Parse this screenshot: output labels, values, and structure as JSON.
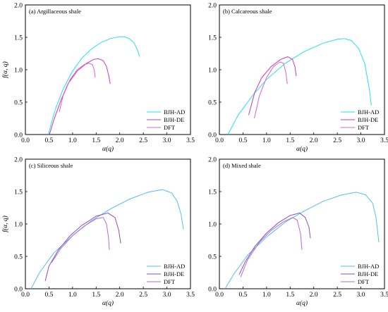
{
  "chart_data": [
    {
      "type": "line",
      "title": "(a)  Argillaceous shale",
      "xlabel": "α(q)",
      "ylabel": "f(α, q)",
      "xlim": [
        0,
        3.5
      ],
      "ylim": [
        0,
        2.0
      ],
      "xticks": [
        "0.0",
        "0.5",
        "1.0",
        "1.5",
        "2.0",
        "2.5",
        "3.0",
        "3.5"
      ],
      "yticks": [
        "0.0",
        "0.5",
        "1.0",
        "1.5",
        "2.0"
      ],
      "legend_position": "bottom-right",
      "series": [
        {
          "name": "BJH-AD",
          "color": "#22e0f2",
          "x": [
            0.49,
            0.55,
            0.65,
            0.8,
            1.0,
            1.2,
            1.4,
            1.6,
            1.8,
            2.0,
            2.1,
            2.2,
            2.3,
            2.38,
            2.42
          ],
          "y": [
            0.0,
            0.18,
            0.42,
            0.7,
            0.98,
            1.18,
            1.32,
            1.42,
            1.48,
            1.51,
            1.51,
            1.48,
            1.42,
            1.3,
            1.2
          ]
        },
        {
          "name": "BJH-DE",
          "color": "#c23bc4",
          "x": [
            0.51,
            0.6,
            0.75,
            0.9,
            1.1,
            1.3,
            1.45,
            1.55,
            1.65,
            1.72,
            1.77,
            1.8
          ],
          "y": [
            0.0,
            0.22,
            0.52,
            0.78,
            0.98,
            1.1,
            1.16,
            1.17,
            1.14,
            1.05,
            0.9,
            0.78
          ]
        },
        {
          "name": "DFT",
          "color": "#d960d9",
          "x": [
            0.72,
            0.8,
            0.95,
            1.1,
            1.25,
            1.35,
            1.42,
            1.46,
            1.48
          ],
          "y": [
            0.35,
            0.6,
            0.85,
            1.0,
            1.08,
            1.1,
            1.08,
            1.0,
            0.88
          ]
        }
      ]
    },
    {
      "type": "line",
      "title": "(b)  Calcareous shale",
      "xlabel": "α(q)",
      "ylabel": "",
      "xlim": [
        0,
        3.5
      ],
      "ylim": [
        0,
        2.0
      ],
      "xticks": [
        "0.0",
        "0.5",
        "1.0",
        "1.5",
        "2.0",
        "2.5",
        "3.0",
        "3.5"
      ],
      "yticks": [
        "0.0",
        "0.5",
        "1.0",
        "1.5",
        "2.0"
      ],
      "legend_position": "bottom-right",
      "series": [
        {
          "name": "BJH-AD",
          "color": "#22e0f2",
          "x": [
            0.18,
            0.4,
            0.7,
            1.0,
            1.4,
            1.8,
            2.2,
            2.5,
            2.65,
            2.8,
            2.95,
            3.08,
            3.18,
            3.22
          ],
          "y": [
            0.0,
            0.3,
            0.6,
            0.85,
            1.1,
            1.28,
            1.41,
            1.47,
            1.48,
            1.45,
            1.33,
            1.1,
            0.7,
            0.45
          ]
        },
        {
          "name": "BJH-DE",
          "color": "#c23bc4",
          "x": [
            0.62,
            0.75,
            0.9,
            1.1,
            1.3,
            1.45,
            1.55,
            1.6,
            1.63
          ],
          "y": [
            0.3,
            0.65,
            0.88,
            1.05,
            1.16,
            1.2,
            1.16,
            1.05,
            0.9
          ]
        },
        {
          "name": "DFT",
          "color": "#d960d9",
          "x": [
            0.74,
            0.85,
            1.0,
            1.15,
            1.28,
            1.36,
            1.41,
            1.44
          ],
          "y": [
            0.25,
            0.6,
            0.88,
            1.05,
            1.12,
            1.1,
            0.95,
            0.78
          ]
        }
      ]
    },
    {
      "type": "line",
      "title": "(c)  Siliceous shale",
      "xlabel": "α(q)",
      "ylabel": "f(α, q)",
      "xlim": [
        0,
        3.5
      ],
      "ylim": [
        0,
        2.0
      ],
      "xticks": [
        "0.0",
        "0.5",
        "1.0",
        "1.5",
        "2.0",
        "2.5",
        "3.0",
        "3.5"
      ],
      "yticks": [
        "0.0",
        "0.5",
        "1.0",
        "1.5",
        "2.0"
      ],
      "legend_position": "bottom-right",
      "series": [
        {
          "name": "BJH-AD",
          "color": "#55bdee",
          "x": [
            0.12,
            0.3,
            0.6,
            1.0,
            1.4,
            1.8,
            2.2,
            2.6,
            2.9,
            3.1,
            3.22,
            3.3,
            3.35
          ],
          "y": [
            0.0,
            0.25,
            0.55,
            0.82,
            1.05,
            1.23,
            1.38,
            1.49,
            1.53,
            1.48,
            1.35,
            1.15,
            0.92
          ]
        },
        {
          "name": "BJH-DE",
          "color": "#8a4fc4",
          "x": [
            0.42,
            0.5,
            0.7,
            0.95,
            1.2,
            1.5,
            1.75,
            1.9,
            1.98,
            2.02
          ],
          "y": [
            0.12,
            0.35,
            0.6,
            0.82,
            0.98,
            1.12,
            1.17,
            1.1,
            0.9,
            0.7
          ]
        },
        {
          "name": "DFT",
          "color": "#b36ad6",
          "x": [
            0.55,
            0.75,
            1.0,
            1.25,
            1.5,
            1.65,
            1.72,
            1.76,
            1.78
          ],
          "y": [
            0.4,
            0.62,
            0.82,
            0.97,
            1.08,
            1.1,
            1.0,
            0.8,
            0.6
          ]
        }
      ]
    },
    {
      "type": "line",
      "title": "(d)  Mixed shale",
      "xlabel": "α(q)",
      "ylabel": "",
      "xlim": [
        0,
        3.5
      ],
      "ylim": [
        0,
        2.0
      ],
      "xticks": [
        "0.0",
        "0.5",
        "1.0",
        "1.5",
        "2.0",
        "2.5",
        "3.0",
        "3.5"
      ],
      "yticks": [
        "0.0",
        "0.5",
        "1.0",
        "1.5",
        "2.0"
      ],
      "legend_position": "bottom-right",
      "series": [
        {
          "name": "BJH-AD",
          "color": "#55bdee",
          "x": [
            0.12,
            0.3,
            0.6,
            1.0,
            1.4,
            1.8,
            2.2,
            2.6,
            2.9,
            3.1,
            3.25,
            3.32,
            3.38
          ],
          "y": [
            0.0,
            0.22,
            0.52,
            0.8,
            1.03,
            1.2,
            1.35,
            1.45,
            1.49,
            1.45,
            1.32,
            1.1,
            0.72
          ]
        },
        {
          "name": "BJH-DE",
          "color": "#8a4fc4",
          "x": [
            0.42,
            0.55,
            0.75,
            1.0,
            1.25,
            1.5,
            1.7,
            1.82,
            1.9,
            1.93
          ],
          "y": [
            0.22,
            0.42,
            0.65,
            0.86,
            1.02,
            1.13,
            1.17,
            1.1,
            0.95,
            0.78
          ]
        },
        {
          "name": "DFT",
          "color": "#b36ad6",
          "x": [
            0.45,
            0.6,
            0.85,
            1.1,
            1.35,
            1.55,
            1.65,
            1.72,
            1.75
          ],
          "y": [
            0.18,
            0.45,
            0.72,
            0.9,
            1.03,
            1.1,
            1.06,
            0.85,
            0.6
          ]
        }
      ]
    }
  ]
}
